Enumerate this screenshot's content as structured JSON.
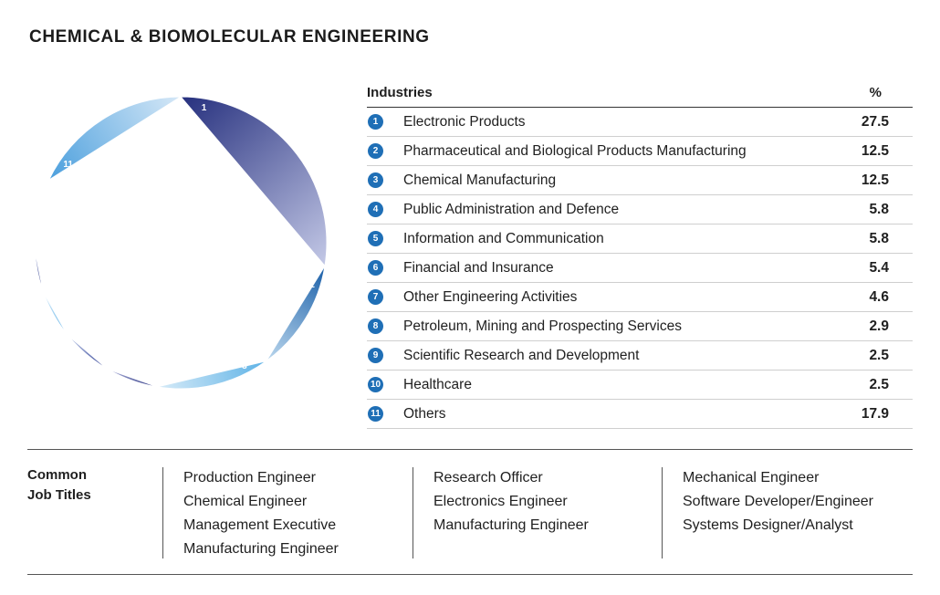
{
  "title": "CHEMICAL & BIOMOLECULAR ENGINEERING",
  "table": {
    "header_industries": "Industries",
    "header_pct": "%"
  },
  "chart_data": {
    "type": "pie",
    "categories": [
      "Electronic Products",
      "Pharmaceutical and Biological Products Manufacturing",
      "Chemical Manufacturing",
      "Public Administration and Defence",
      "Information and Communication",
      "Financial and Insurance",
      "Other Engineering Activities",
      "Petroleum, Mining and Prospecting Services",
      "Scientific Research and Development",
      "Healthcare",
      "Others"
    ],
    "values": [
      27.5,
      12.5,
      12.5,
      5.8,
      5.8,
      5.4,
      4.6,
      2.9,
      2.5,
      2.5,
      17.9
    ],
    "value_labels": [
      "27.5",
      "12.5",
      "12.5",
      "5.8",
      "5.8",
      "5.4",
      "4.6",
      "2.9",
      "2.5",
      "2.5",
      "17.9"
    ],
    "slice_labels": [
      "1",
      "2",
      "3",
      "4",
      "5",
      "6",
      "7",
      "8",
      "9",
      "10",
      "11"
    ],
    "colors": [
      [
        "#26307e",
        "#c3c8e6"
      ],
      [
        "#1a5fa8",
        "#bcd8ee"
      ],
      [
        "#5db2e6",
        "#d7ebf8"
      ],
      [
        "#252f7f",
        "#b7bce0"
      ],
      [
        "#2f3e93",
        "#c9d5ef"
      ],
      [
        "#63b3e8",
        "#e0effa"
      ],
      [
        "#232d79",
        "#a3b0df"
      ],
      [
        "#3153a3",
        "#cfe0f5"
      ],
      [
        "#6fb9e8",
        "#e3f1fa"
      ],
      [
        "#27308a",
        "#b4bde4"
      ],
      [
        "#4b9fdd",
        "#d6e8f7"
      ]
    ],
    "donut": true
  },
  "job_titles": {
    "heading_line1": "Common",
    "heading_line2": "Job Titles",
    "columns": [
      [
        "Production Engineer",
        "Chemical Engineer",
        "Management Executive",
        "Manufacturing Engineer"
      ],
      [
        "Research Officer",
        "Electronics Engineer",
        "Manufacturing Engineer"
      ],
      [
        "Mechanical Engineer",
        "Software Developer/Engineer",
        "Systems Designer/Analyst"
      ]
    ]
  }
}
